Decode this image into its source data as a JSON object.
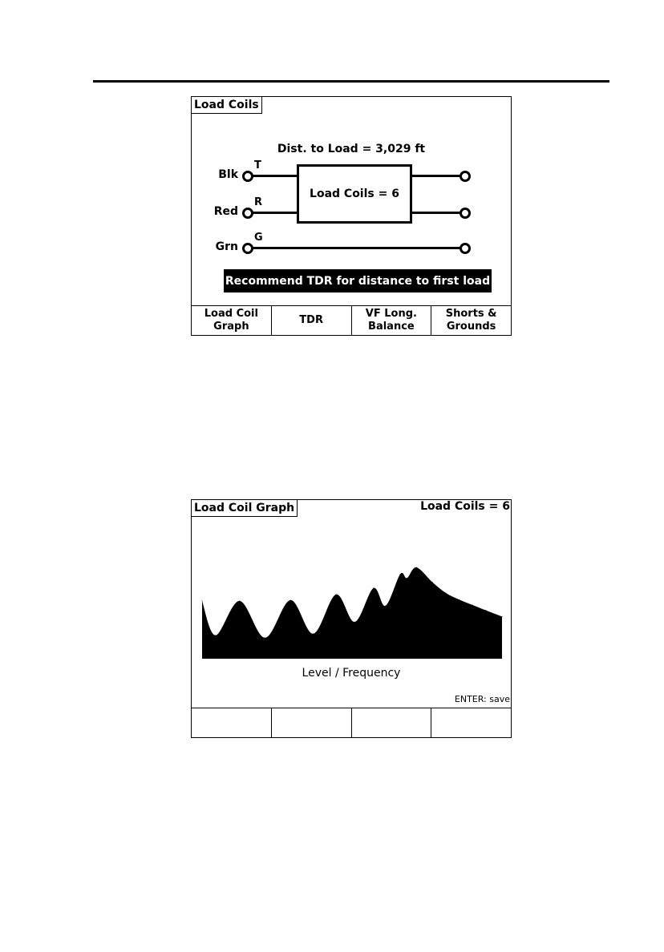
{
  "screen1": {
    "title": "Load Coils",
    "distance_label": "Dist. to Load = 3,029 ft",
    "box_label": "Load Coils = 6",
    "wires": [
      {
        "color_label": "Blk",
        "pair_label": "T"
      },
      {
        "color_label": "Red",
        "pair_label": "R"
      },
      {
        "color_label": "Grn",
        "pair_label": "G"
      }
    ],
    "banner": "Recommend TDR for distance to first load",
    "softkeys": [
      {
        "line1": "Load Coil",
        "line2": "Graph"
      },
      {
        "line1": "TDR",
        "line2": ""
      },
      {
        "line1": "VF Long.",
        "line2": "Balance"
      },
      {
        "line1": "Shorts &",
        "line2": "Grounds"
      }
    ]
  },
  "screen2": {
    "title": "Load Coil Graph",
    "status": "Load Coils = 6",
    "hint": "ENTER: save",
    "softkeys": [
      "",
      "",
      "",
      ""
    ]
  },
  "chart_data": {
    "type": "area",
    "xlabel": "Level / Frequency",
    "fill_color": "#000000",
    "axes_visible": false,
    "grid": false,
    "x": [
      0,
      50,
      140,
      235,
      330,
      415,
      500,
      570,
      640,
      685,
      740,
      765,
      800,
      860,
      910,
      960,
      1010,
      1060,
      1120
    ],
    "values": [
      215,
      87,
      215,
      78,
      218,
      93,
      239,
      137,
      263,
      197,
      315,
      300,
      340,
      285,
      245,
      220,
      200,
      180,
      157
    ]
  }
}
